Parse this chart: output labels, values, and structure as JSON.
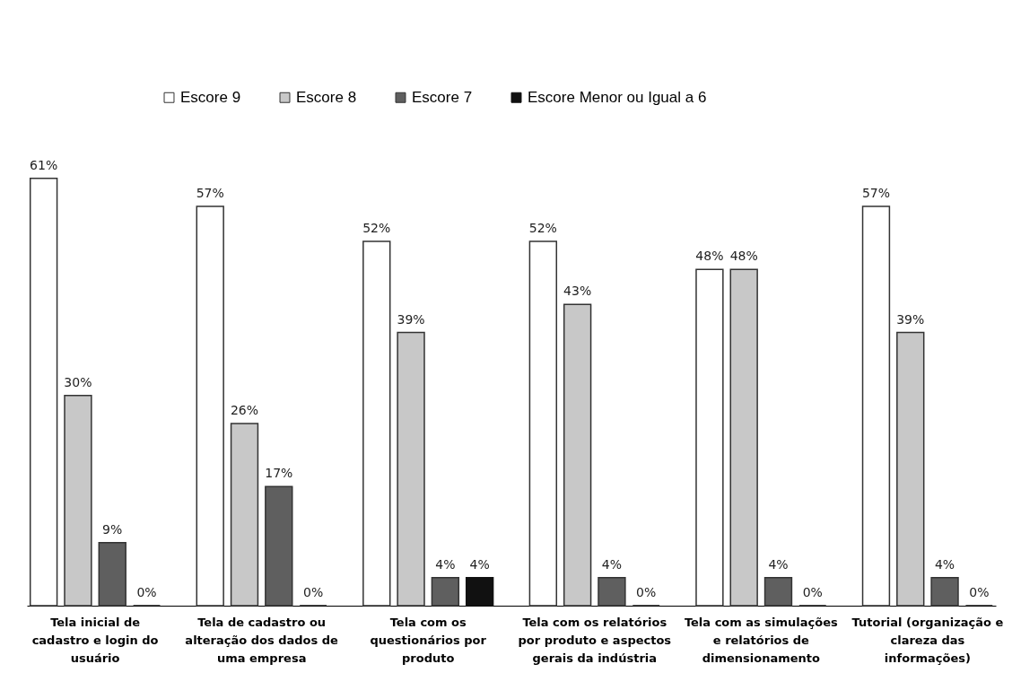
{
  "chart_data": {
    "type": "bar",
    "categories": [
      "Tela inicial de cadastro e login do usuário",
      "Tela de cadastro ou alteração dos dados de uma empresa",
      "Tela com os questionários por produto",
      "Tela com os relatórios por produto e aspectos gerais da indústria",
      "Tela com as simulações e relatórios de dimensionamento",
      "Tutorial (organização e clareza das informações)"
    ],
    "series": [
      {
        "name": "Escore 9",
        "color": "#ffffff",
        "values": [
          61,
          57,
          52,
          52,
          48,
          57
        ],
        "value_labels": [
          "61%",
          "57%",
          "52%",
          "52%",
          "48%",
          "57%"
        ]
      },
      {
        "name": "Escore 8",
        "color": "#c8c8c8",
        "values": [
          30,
          26,
          39,
          43,
          48,
          39
        ],
        "value_labels": [
          "30%",
          "26%",
          "39%",
          "43%",
          "48%",
          "39%"
        ]
      },
      {
        "name": "Escore 7",
        "color": "#5f5f5f",
        "values": [
          9,
          17,
          4,
          4,
          4,
          4
        ],
        "value_labels": [
          "9%",
          "17%",
          "4%",
          "4%",
          "4%",
          "4%"
        ]
      },
      {
        "name": "Escore Menor ou Igual a 6",
        "color": "#111111",
        "values": [
          0,
          0,
          4,
          0,
          0,
          0
        ],
        "value_labels": [
          "0%",
          "0%",
          "4%",
          "0%",
          "0%",
          "0%"
        ]
      }
    ],
    "legend": "top"
  }
}
